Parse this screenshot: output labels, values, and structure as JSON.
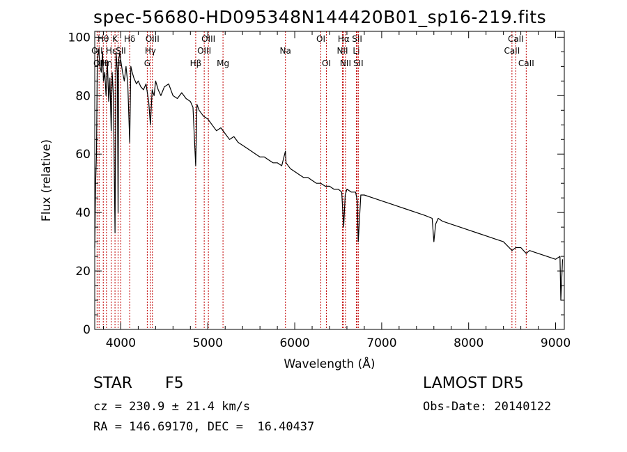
{
  "chart_data": {
    "type": "line",
    "title": "spec-56680-HD095348N144420B01_sp16-219.fits",
    "xlabel": "Wavelength (Å)",
    "ylabel": "Flux (relative)",
    "xlim": [
      3700,
      9100
    ],
    "ylim": [
      0,
      102
    ],
    "xticks": [
      4000,
      5000,
      6000,
      7000,
      8000,
      9000
    ],
    "yticks": [
      0,
      20,
      40,
      60,
      80,
      100
    ],
    "grid": false,
    "series": [
      {
        "x": [
          3700,
          3710,
          3720,
          3730,
          3745,
          3760,
          3775,
          3790,
          3800,
          3815,
          3830,
          3845,
          3860,
          3875,
          3889,
          3900,
          3915,
          3933,
          3945,
          3960,
          3968,
          3975,
          3990,
          4000,
          4020,
          4040,
          4060,
          4080,
          4102,
          4115,
          4130,
          4150,
          4180,
          4200,
          4230,
          4260,
          4290,
          4320,
          4340,
          4360,
          4383,
          4400,
          4430,
          4460,
          4500,
          4550,
          4600,
          4650,
          4700,
          4750,
          4800,
          4830,
          4861,
          4875,
          4900,
          4950,
          5000,
          5050,
          5100,
          5150,
          5200,
          5250,
          5300,
          5350,
          5400,
          5450,
          5500,
          5550,
          5600,
          5650,
          5700,
          5750,
          5800,
          5850,
          5893,
          5900,
          5950,
          6000,
          6050,
          6100,
          6150,
          6200,
          6250,
          6300,
          6350,
          6400,
          6450,
          6500,
          6540,
          6563,
          6580,
          6600,
          6650,
          6700,
          6720,
          6730,
          6760,
          6800,
          6900,
          7000,
          7100,
          7200,
          7300,
          7400,
          7500,
          7580,
          7600,
          7620,
          7650,
          7700,
          7800,
          7900,
          8000,
          8100,
          8200,
          8300,
          8400,
          8498,
          8542,
          8600,
          8662,
          8700,
          8800,
          8900,
          9000,
          9050,
          9060,
          9080
        ],
        "y": [
          28,
          50,
          60,
          92,
          96,
          90,
          88,
          95,
          85,
          88,
          80,
          92,
          78,
          86,
          68,
          88,
          80,
          33,
          95,
          88,
          40,
          92,
          95,
          92,
          88,
          85,
          90,
          84,
          64,
          90,
          88,
          86,
          84,
          85,
          83,
          82,
          84,
          78,
          70,
          82,
          80,
          85,
          82,
          80,
          83,
          84,
          80,
          79,
          81,
          79,
          78,
          76,
          56,
          77,
          75,
          73,
          72,
          70,
          68,
          69,
          67,
          65,
          66,
          64,
          63,
          62,
          61,
          60,
          59,
          59,
          58,
          57,
          57,
          56,
          61,
          57,
          55,
          54,
          53,
          52,
          52,
          51,
          50,
          50,
          49,
          49,
          48,
          48,
          47,
          35,
          46,
          48,
          47,
          47,
          44,
          30,
          46,
          46,
          45,
          44,
          43,
          42,
          41,
          40,
          39,
          38,
          30,
          36,
          38,
          37,
          36,
          35,
          34,
          33,
          32,
          31,
          30,
          27,
          28,
          28,
          26,
          27,
          26,
          25,
          24,
          25,
          10,
          24
        ]
      }
    ],
    "line_markers": [
      {
        "wavelength": 3727,
        "label": "OII",
        "row": 2
      },
      {
        "wavelength": 3750,
        "label": "OII",
        "row": 3
      },
      {
        "wavelength": 3798,
        "label": "Hθ",
        "row": 1
      },
      {
        "wavelength": 3835,
        "label": "Hη",
        "row": 3
      },
      {
        "wavelength": 3889,
        "label": "Hε",
        "row": 2
      },
      {
        "wavelength": 3933,
        "label": "K",
        "row": 1
      },
      {
        "wavelength": 3968,
        "label": "H",
        "row": 3
      },
      {
        "wavelength": 4000,
        "label": "SII",
        "row": 2
      },
      {
        "wavelength": 4102,
        "label": "Hδ",
        "row": 1
      },
      {
        "wavelength": 4304,
        "label": "G",
        "row": 3
      },
      {
        "wavelength": 4340,
        "label": "Hγ",
        "row": 2
      },
      {
        "wavelength": 4363,
        "label": "OIII",
        "row": 1
      },
      {
        "wavelength": 4861,
        "label": "Hβ",
        "row": 3
      },
      {
        "wavelength": 4959,
        "label": "OIII",
        "row": 2
      },
      {
        "wavelength": 5007,
        "label": "OIII",
        "row": 1
      },
      {
        "wavelength": 5175,
        "label": "Mg",
        "row": 3
      },
      {
        "wavelength": 5893,
        "label": "Na",
        "row": 2
      },
      {
        "wavelength": 6300,
        "label": "OI",
        "row": 1
      },
      {
        "wavelength": 6364,
        "label": "OI",
        "row": 3
      },
      {
        "wavelength": 6548,
        "label": "NII",
        "row": 2
      },
      {
        "wavelength": 6563,
        "label": "Hα",
        "row": 1
      },
      {
        "wavelength": 6584,
        "label": "NII",
        "row": 3
      },
      {
        "wavelength": 6708,
        "label": "Li",
        "row": 2
      },
      {
        "wavelength": 6717,
        "label": "SII",
        "row": 1
      },
      {
        "wavelength": 6731,
        "label": "SII",
        "row": 3
      },
      {
        "wavelength": 8498,
        "label": "CaII",
        "row": 2
      },
      {
        "wavelength": 8542,
        "label": "CaII",
        "row": 1
      },
      {
        "wavelength": 8662,
        "label": "CaII",
        "row": 3
      }
    ],
    "colors": {
      "spectrum": "#000000",
      "marker": "#c00000",
      "axis": "#000000"
    }
  },
  "info": {
    "object_class": "STAR",
    "subclass": "F5",
    "survey": "LAMOST DR5",
    "redshift": "cz = 230.9 ± 21.4 km/s",
    "obs_date": "Obs-Date: 20140122",
    "coordinates": "RA = 146.69170, DEC =  16.40437"
  }
}
